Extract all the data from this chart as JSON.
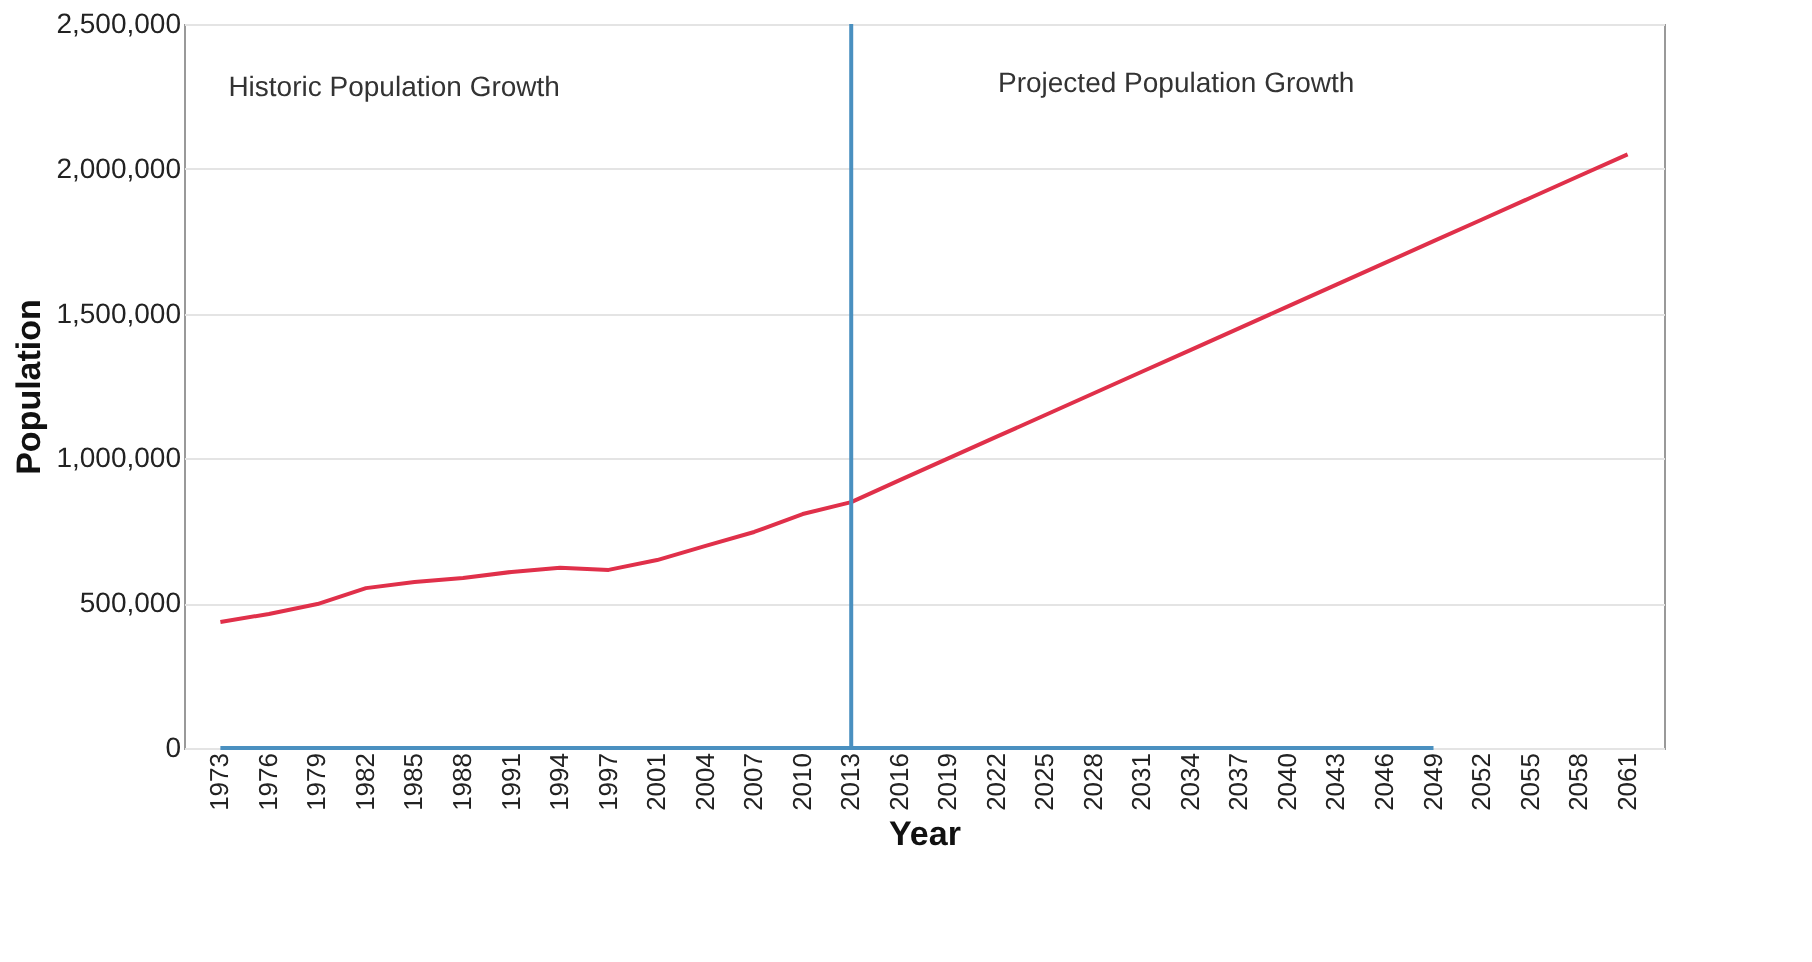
{
  "chart_data": {
    "type": "line",
    "xlabel": "Year",
    "ylabel": "Population",
    "categories": [
      "1973",
      "1976",
      "1979",
      "1982",
      "1985",
      "1988",
      "1991",
      "1994",
      "1997",
      "2001",
      "2004",
      "2007",
      "2010",
      "2013",
      "2016",
      "2019",
      "2022",
      "2025",
      "2028",
      "2031",
      "2034",
      "2037",
      "2040",
      "2043",
      "2046",
      "2049",
      "2052",
      "2055",
      "2058",
      "2061"
    ],
    "series": [
      {
        "color": "#e0304a",
        "values": [
          435000,
          463000,
          497000,
          552000,
          573000,
          587000,
          608000,
          622000,
          615000,
          649000,
          698000,
          746000,
          808000,
          849000,
          925000,
          1000000,
          1075000,
          1150000,
          1225000,
          1300000,
          1375000,
          1450000,
          1525000,
          1600000,
          1675000,
          1750000,
          1825000,
          1900000,
          1975000,
          2050000
        ]
      },
      {
        "color": "#4a90c0",
        "values": [
          0,
          0,
          0,
          0,
          0,
          0,
          0,
          0,
          0,
          0,
          0,
          0,
          0,
          0,
          0,
          0,
          0,
          0,
          0,
          0,
          0,
          0,
          0,
          0,
          0,
          0,
          null,
          null,
          null,
          null
        ]
      }
    ],
    "ref_lines": [
      {
        "axis": "x",
        "value": "2013",
        "color": "#4a90c0"
      }
    ],
    "annotations": [
      "Historic Population Growth",
      "Projected Population Growth"
    ],
    "ylim": [
      0,
      2500000
    ],
    "yticks": [
      0,
      {
        "value": 500000,
        "label": "500,000"
      },
      {
        "value": 1000000,
        "label": "1,000,000"
      },
      {
        "value": 1500000,
        "label": "1,500,000"
      },
      {
        "value": 2000000,
        "label": "2,000,000"
      },
      {
        "value": 2500000,
        "label": "2,500,000"
      }
    ],
    "grid": "y",
    "marker": "none",
    "line_style": "solid"
  }
}
